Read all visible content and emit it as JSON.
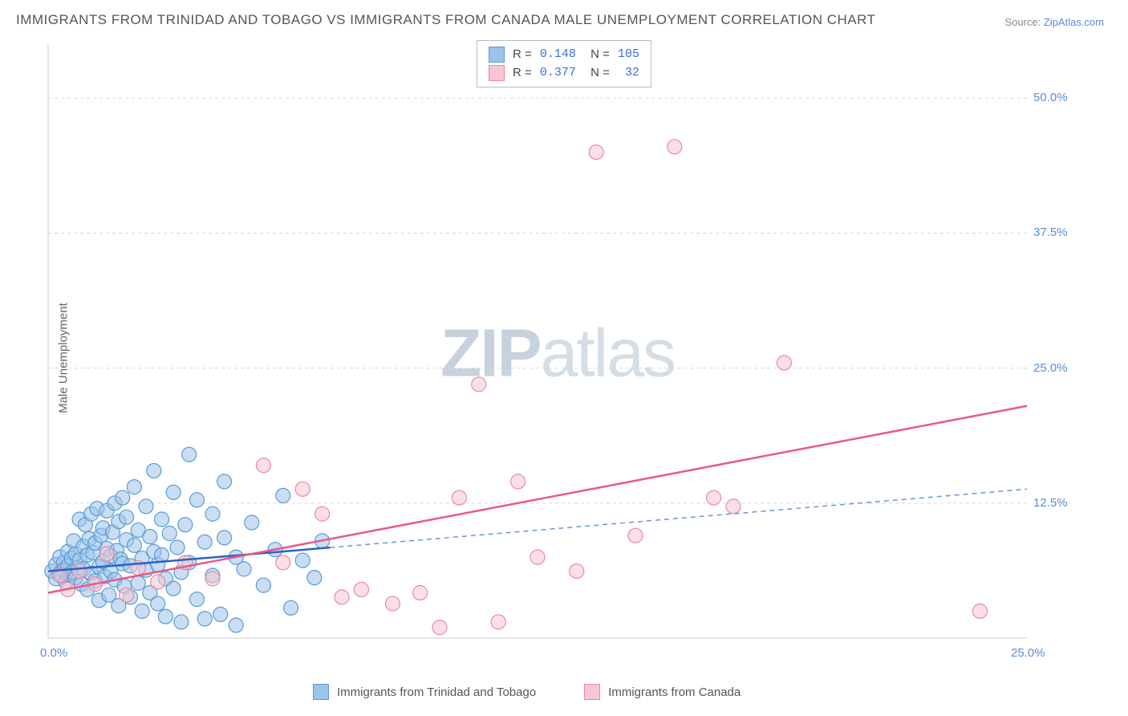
{
  "title": "IMMIGRANTS FROM TRINIDAD AND TOBAGO VS IMMIGRANTS FROM CANADA MALE UNEMPLOYMENT CORRELATION CHART",
  "source_label": "Source:",
  "source_value": "ZipAtlas.com",
  "ylabel": "Male Unemployment",
  "watermark_a": "ZIP",
  "watermark_b": "atlas",
  "chart": {
    "type": "scatter",
    "background_color": "#ffffff",
    "grid_color": "#d8d8d8",
    "grid_dash": "4 4",
    "xlim": [
      0,
      25
    ],
    "ylim": [
      0,
      55
    ],
    "xticks": [
      {
        "v": 0,
        "label": "0.0%"
      },
      {
        "v": 25,
        "label": "25.0%"
      }
    ],
    "yticks": [
      {
        "v": 12.5,
        "label": "12.5%"
      },
      {
        "v": 25,
        "label": "25.0%"
      },
      {
        "v": 37.5,
        "label": "37.5%"
      },
      {
        "v": 50,
        "label": "50.0%"
      }
    ],
    "marker_radius": 9,
    "marker_opacity": 0.55,
    "series": [
      {
        "name": "Immigrants from Trinidad and Tobago",
        "color_fill": "#9cc3ea",
        "color_stroke": "#5a9bd5",
        "R": "0.148",
        "N": "105",
        "trend": {
          "solid_color": "#2a63c8",
          "solid_width": 2.5,
          "dashed_color": "#6a94d6",
          "dashed_width": 1.5,
          "y_at_x0": 6.2,
          "y_at_x25": 13.8,
          "solid_x_max": 7.2
        },
        "points": [
          [
            0.1,
            6.2
          ],
          [
            0.2,
            5.5
          ],
          [
            0.2,
            6.8
          ],
          [
            0.3,
            6.0
          ],
          [
            0.3,
            7.5
          ],
          [
            0.35,
            5.8
          ],
          [
            0.4,
            7.0
          ],
          [
            0.4,
            6.3
          ],
          [
            0.45,
            5.2
          ],
          [
            0.5,
            6.7
          ],
          [
            0.5,
            8.0
          ],
          [
            0.55,
            5.9
          ],
          [
            0.6,
            7.4
          ],
          [
            0.6,
            6.1
          ],
          [
            0.65,
            9.0
          ],
          [
            0.7,
            5.6
          ],
          [
            0.7,
            7.8
          ],
          [
            0.75,
            6.5
          ],
          [
            0.8,
            11.0
          ],
          [
            0.8,
            7.2
          ],
          [
            0.85,
            5.0
          ],
          [
            0.9,
            8.5
          ],
          [
            0.9,
            6.4
          ],
          [
            0.95,
            10.5
          ],
          [
            1.0,
            7.7
          ],
          [
            1.0,
            4.5
          ],
          [
            1.05,
            9.2
          ],
          [
            1.1,
            6.0
          ],
          [
            1.1,
            11.5
          ],
          [
            1.15,
            7.9
          ],
          [
            1.2,
            5.3
          ],
          [
            1.2,
            8.8
          ],
          [
            1.25,
            12.0
          ],
          [
            1.3,
            6.6
          ],
          [
            1.3,
            3.5
          ],
          [
            1.35,
            9.5
          ],
          [
            1.4,
            7.1
          ],
          [
            1.4,
            10.2
          ],
          [
            1.45,
            5.7
          ],
          [
            1.5,
            8.3
          ],
          [
            1.5,
            11.8
          ],
          [
            1.55,
            4.0
          ],
          [
            1.6,
            7.6
          ],
          [
            1.6,
            6.2
          ],
          [
            1.65,
            9.8
          ],
          [
            1.7,
            12.5
          ],
          [
            1.7,
            5.4
          ],
          [
            1.75,
            8.1
          ],
          [
            1.8,
            3.0
          ],
          [
            1.8,
            10.8
          ],
          [
            1.85,
            7.3
          ],
          [
            1.9,
            6.9
          ],
          [
            1.9,
            13.0
          ],
          [
            1.95,
            4.8
          ],
          [
            2.0,
            9.1
          ],
          [
            2.0,
            11.2
          ],
          [
            2.1,
            6.7
          ],
          [
            2.1,
            3.8
          ],
          [
            2.2,
            8.6
          ],
          [
            2.2,
            14.0
          ],
          [
            2.3,
            5.1
          ],
          [
            2.3,
            10.0
          ],
          [
            2.4,
            7.4
          ],
          [
            2.4,
            2.5
          ],
          [
            2.5,
            12.2
          ],
          [
            2.5,
            6.3
          ],
          [
            2.6,
            9.4
          ],
          [
            2.6,
            4.2
          ],
          [
            2.7,
            8.0
          ],
          [
            2.7,
            15.5
          ],
          [
            2.8,
            6.8
          ],
          [
            2.8,
            3.2
          ],
          [
            2.9,
            11.0
          ],
          [
            2.9,
            7.7
          ],
          [
            3.0,
            5.5
          ],
          [
            3.0,
            2.0
          ],
          [
            3.1,
            9.7
          ],
          [
            3.2,
            13.5
          ],
          [
            3.2,
            4.6
          ],
          [
            3.3,
            8.4
          ],
          [
            3.4,
            6.1
          ],
          [
            3.4,
            1.5
          ],
          [
            3.5,
            10.5
          ],
          [
            3.6,
            17.0
          ],
          [
            3.6,
            7.0
          ],
          [
            3.8,
            12.8
          ],
          [
            3.8,
            3.6
          ],
          [
            4.0,
            8.9
          ],
          [
            4.0,
            1.8
          ],
          [
            4.2,
            11.5
          ],
          [
            4.2,
            5.8
          ],
          [
            4.4,
            2.2
          ],
          [
            4.5,
            9.3
          ],
          [
            4.5,
            14.5
          ],
          [
            4.8,
            7.5
          ],
          [
            4.8,
            1.2
          ],
          [
            5.0,
            6.4
          ],
          [
            5.2,
            10.7
          ],
          [
            5.5,
            4.9
          ],
          [
            5.8,
            8.2
          ],
          [
            6.0,
            13.2
          ],
          [
            6.2,
            2.8
          ],
          [
            6.5,
            7.2
          ],
          [
            6.8,
            5.6
          ],
          [
            7.0,
            9.0
          ]
        ]
      },
      {
        "name": "Immigrants from Canada",
        "color_fill": "#f6c6d1",
        "color_stroke": "#e88aa3",
        "R": "0.377",
        "N": " 32",
        "trend": {
          "solid_color": "#e85a87",
          "solid_width": 2.5,
          "y_at_x0": 4.2,
          "y_at_x25": 21.5,
          "solid_x_max": 25
        },
        "points": [
          [
            0.3,
            5.8
          ],
          [
            0.5,
            4.5
          ],
          [
            0.8,
            6.2
          ],
          [
            1.2,
            5.0
          ],
          [
            1.5,
            7.8
          ],
          [
            2.0,
            4.0
          ],
          [
            2.3,
            6.5
          ],
          [
            2.8,
            5.2
          ],
          [
            3.5,
            7.0
          ],
          [
            4.2,
            5.5
          ],
          [
            5.5,
            16.0
          ],
          [
            6.0,
            7.0
          ],
          [
            6.5,
            13.8
          ],
          [
            7.0,
            11.5
          ],
          [
            7.5,
            3.8
          ],
          [
            8.0,
            4.5
          ],
          [
            8.8,
            3.2
          ],
          [
            9.5,
            4.2
          ],
          [
            10.0,
            1.0
          ],
          [
            10.5,
            13.0
          ],
          [
            11.0,
            23.5
          ],
          [
            11.5,
            1.5
          ],
          [
            12.0,
            14.5
          ],
          [
            12.5,
            7.5
          ],
          [
            13.5,
            6.2
          ],
          [
            14.0,
            45.0
          ],
          [
            15.0,
            9.5
          ],
          [
            16.0,
            45.5
          ],
          [
            17.0,
            13.0
          ],
          [
            17.5,
            12.2
          ],
          [
            18.8,
            25.5
          ],
          [
            23.8,
            2.5
          ]
        ]
      }
    ]
  }
}
